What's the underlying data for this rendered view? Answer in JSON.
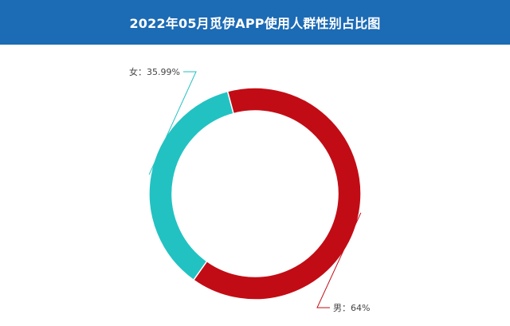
{
  "header": {
    "title": "2022年05月觅伊APP使用人群性别占比图",
    "background_color": "#1c6bb5",
    "text_color": "#ffffff"
  },
  "chart_data": {
    "type": "pie",
    "title": "2022年05月觅伊APP使用人群性别占比图",
    "donut": true,
    "slices": [
      {
        "name": "女",
        "value": 35.99,
        "label": "女：35.99%",
        "color": "#22c2c2"
      },
      {
        "name": "男",
        "value": 64,
        "label": "男：64%",
        "color": "#c20c15"
      }
    ]
  }
}
